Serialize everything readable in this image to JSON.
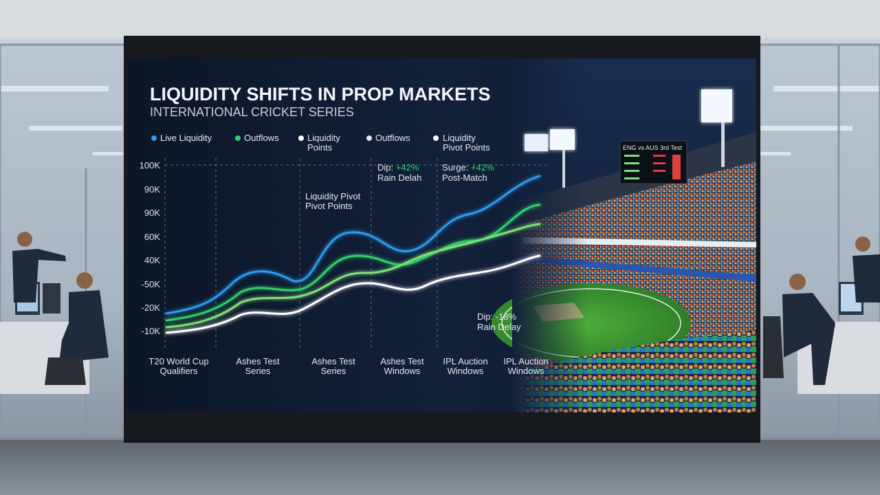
{
  "screen": {
    "title": "LIQUIDITY SHIFTS IN PROP MARKETS",
    "subtitle": "INTERNATIONAL CRICKET SERIES",
    "legend": [
      [
        "Live Liquidity"
      ],
      [
        "Outflows"
      ],
      [
        "Liquidity",
        "Points"
      ],
      [
        "Outflows"
      ],
      [
        "Liquidity",
        "Pivot Points"
      ]
    ],
    "y_axis_labels": [
      "100K",
      "90K",
      "90K",
      "60K",
      "40K",
      "-50K",
      "-20K",
      "-10K"
    ],
    "x_axis_labels": [
      [
        "T20 World Cup",
        "Qualifiers"
      ],
      [
        "Ashes Test",
        "Series"
      ],
      [
        "Ashes Test",
        "Series"
      ],
      [
        "Ashes Test",
        "Windows"
      ],
      [
        "IPL Auction",
        "Windows"
      ],
      [
        "IPL Auction",
        "Windows"
      ]
    ],
    "annotations": [
      {
        "lines": [
          "Liquidity Pivot",
          "Pivot Points"
        ]
      },
      {
        "label": "Dip:",
        "change": "+42%",
        "note": "Rain Delah"
      },
      {
        "label": "Surge:",
        "change": "+42%",
        "note": "Post-Match"
      },
      {
        "label": "Dip:",
        "change": "-18%",
        "note": "Rain Delay"
      }
    ],
    "scoreboard": "ENG vs AUS 3rd Test"
  }
}
